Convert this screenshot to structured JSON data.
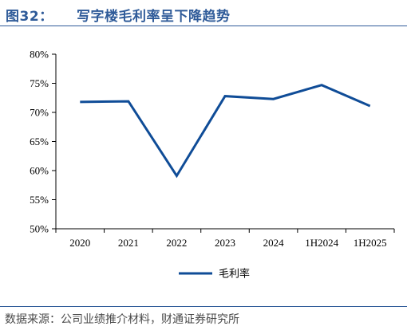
{
  "header": {
    "figure_label": "图32：",
    "title": "写字楼毛利率呈下降趋势"
  },
  "footer": {
    "source": "数据来源：公司业绩推介材料，财通证券研究所"
  },
  "colors": {
    "accent": "#2f5b99",
    "series_line": "#0f4c97",
    "axis": "#000000"
  },
  "chart_data": {
    "type": "line",
    "categories": [
      "2020",
      "2021",
      "2022",
      "2023",
      "2024",
      "1H2024",
      "1H2025"
    ],
    "series": [
      {
        "name": "毛利率",
        "values": [
          71.8,
          71.9,
          59.1,
          72.8,
          72.3,
          74.7,
          71.1
        ]
      }
    ],
    "y_ticks": [
      "50%",
      "55%",
      "60%",
      "65%",
      "70%",
      "75%",
      "80%"
    ],
    "ylim": [
      50,
      80
    ],
    "grid": false,
    "legend": "bottom-center",
    "title": "",
    "xlabel": "",
    "ylabel": ""
  }
}
